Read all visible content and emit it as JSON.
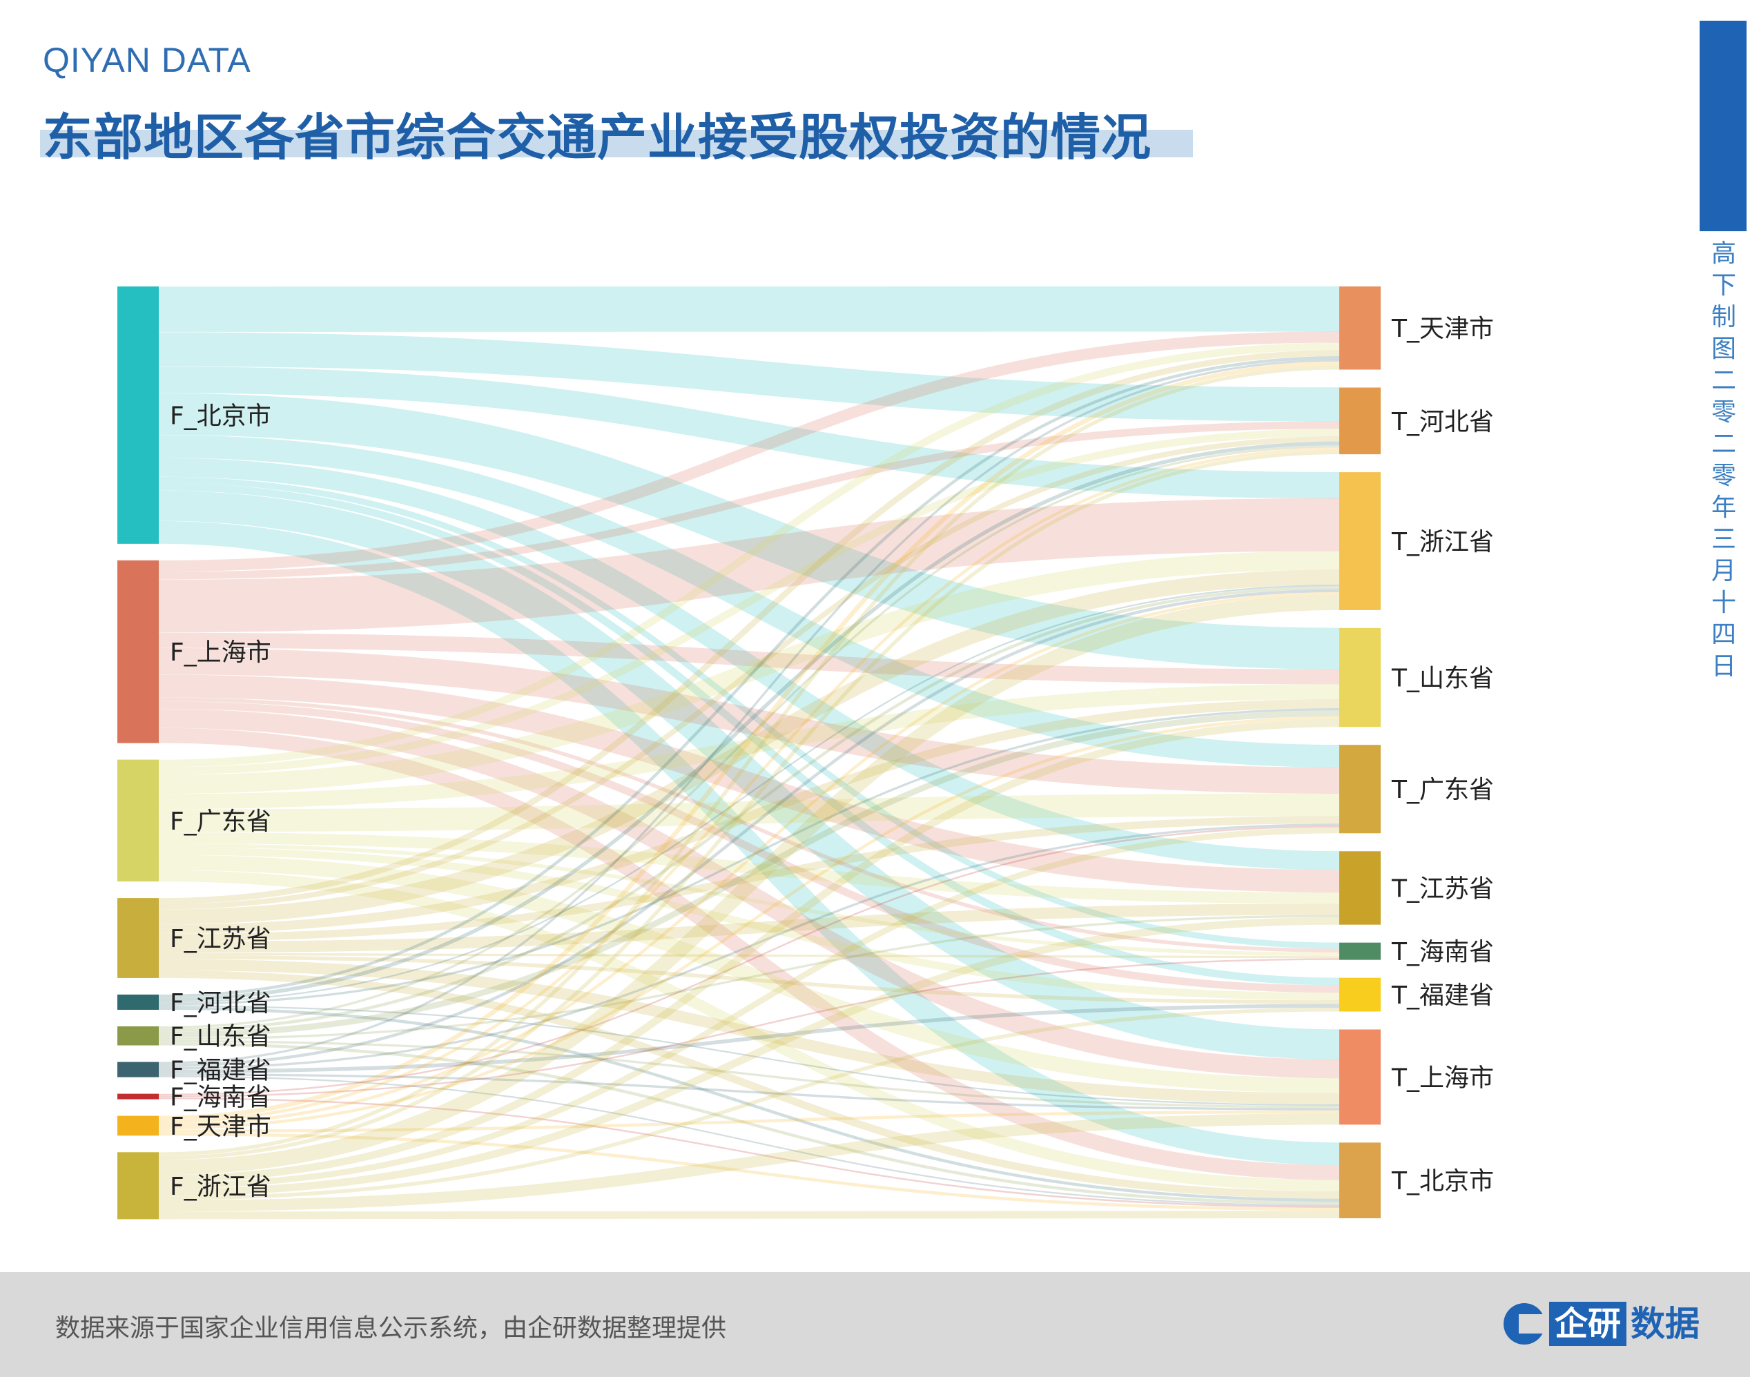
{
  "header": {
    "brand": "QIYAN DATA",
    "title": "东部地区各省市综合交通产业接受股权投资的情况"
  },
  "side": {
    "text": "高下制图 二零二零年三月十四日"
  },
  "footer": {
    "source": "数据来源于国家企业信用信息公示系统，由企研数据整理提供",
    "logo_box": "企研",
    "logo_text": "数据"
  },
  "colors": {
    "F_北京市": "#26bfc1",
    "F_上海市": "#d9745a",
    "F_广东省": "#d6d464",
    "F_江苏省": "#c8ae3d",
    "F_河北省": "#2f6b6e",
    "F_山东省": "#8a9a48",
    "F_福建省": "#3c6470",
    "F_海南省": "#c42d2d",
    "F_天津市": "#f4b31c",
    "F_浙江省": "#c8b43a",
    "T_天津市": "#e8905e",
    "T_河北省": "#e29a4a",
    "T_浙江省": "#f5c14f",
    "T_山东省": "#ead65c",
    "T_广东省": "#d2a83f",
    "T_江苏省": "#c9a22a",
    "T_海南省": "#4f8c64",
    "T_福建省": "#f8cd1e",
    "T_上海市": "#ef8c64",
    "T_北京市": "#dca24c"
  },
  "chart_data": {
    "type": "sankey",
    "title": "东部地区各省市综合交通产业接受股权投资的情况",
    "sources": [
      "F_北京市",
      "F_上海市",
      "F_广东省",
      "F_江苏省",
      "F_河北省",
      "F_山东省",
      "F_福建省",
      "F_海南省",
      "F_天津市",
      "F_浙江省"
    ],
    "targets": [
      "T_天津市",
      "T_河北省",
      "T_浙江省",
      "T_山东省",
      "T_广东省",
      "T_江苏省",
      "T_海南省",
      "T_福建省",
      "T_上海市",
      "T_北京市"
    ],
    "links": [
      {
        "source": "F_北京市",
        "target": "T_天津市",
        "value": 60
      },
      {
        "source": "F_北京市",
        "target": "T_河北省",
        "value": 45
      },
      {
        "source": "F_北京市",
        "target": "T_浙江省",
        "value": 35
      },
      {
        "source": "F_北京市",
        "target": "T_山东省",
        "value": 55
      },
      {
        "source": "F_北京市",
        "target": "T_广东省",
        "value": 30
      },
      {
        "source": "F_北京市",
        "target": "T_江苏省",
        "value": 25
      },
      {
        "source": "F_北京市",
        "target": "T_海南省",
        "value": 8
      },
      {
        "source": "F_北京市",
        "target": "T_福建省",
        "value": 10
      },
      {
        "source": "F_北京市",
        "target": "T_上海市",
        "value": 40
      },
      {
        "source": "F_北京市",
        "target": "T_北京市",
        "value": 30
      },
      {
        "source": "F_上海市",
        "target": "T_天津市",
        "value": 15
      },
      {
        "source": "F_上海市",
        "target": "T_河北省",
        "value": 10
      },
      {
        "source": "F_上海市",
        "target": "T_浙江省",
        "value": 70
      },
      {
        "source": "F_上海市",
        "target": "T_山东省",
        "value": 20
      },
      {
        "source": "F_上海市",
        "target": "T_广东省",
        "value": 35
      },
      {
        "source": "F_上海市",
        "target": "T_江苏省",
        "value": 30
      },
      {
        "source": "F_上海市",
        "target": "T_海南省",
        "value": 5
      },
      {
        "source": "F_上海市",
        "target": "T_福建省",
        "value": 10
      },
      {
        "source": "F_上海市",
        "target": "T_上海市",
        "value": 25
      },
      {
        "source": "F_上海市",
        "target": "T_北京市",
        "value": 20
      },
      {
        "source": "F_广东省",
        "target": "T_天津市",
        "value": 10
      },
      {
        "source": "F_广东省",
        "target": "T_河北省",
        "value": 10
      },
      {
        "source": "F_广东省",
        "target": "T_浙江省",
        "value": 25
      },
      {
        "source": "F_广东省",
        "target": "T_山东省",
        "value": 20
      },
      {
        "source": "F_广东省",
        "target": "T_广东省",
        "value": 30
      },
      {
        "source": "F_广东省",
        "target": "T_江苏省",
        "value": 15
      },
      {
        "source": "F_广东省",
        "target": "T_海南省",
        "value": 5
      },
      {
        "source": "F_广东省",
        "target": "T_福建省",
        "value": 10
      },
      {
        "source": "F_广东省",
        "target": "T_上海市",
        "value": 20
      },
      {
        "source": "F_广东省",
        "target": "T_北京市",
        "value": 15
      },
      {
        "source": "F_江苏省",
        "target": "T_天津市",
        "value": 8
      },
      {
        "source": "F_江苏省",
        "target": "T_河北省",
        "value": 7
      },
      {
        "source": "F_江苏省",
        "target": "T_浙江省",
        "value": 20
      },
      {
        "source": "F_江苏省",
        "target": "T_山东省",
        "value": 12
      },
      {
        "source": "F_江苏省",
        "target": "T_广东省",
        "value": 10
      },
      {
        "source": "F_江苏省",
        "target": "T_江苏省",
        "value": 15
      },
      {
        "source": "F_江苏省",
        "target": "T_海南省",
        "value": 3
      },
      {
        "source": "F_江苏省",
        "target": "T_福建省",
        "value": 5
      },
      {
        "source": "F_江苏省",
        "target": "T_上海市",
        "value": 15
      },
      {
        "source": "F_江苏省",
        "target": "T_北京市",
        "value": 10
      },
      {
        "source": "F_河北省",
        "target": "T_天津市",
        "value": 4
      },
      {
        "source": "F_河北省",
        "target": "T_河北省",
        "value": 5
      },
      {
        "source": "F_河北省",
        "target": "T_浙江省",
        "value": 2
      },
      {
        "source": "F_河北省",
        "target": "T_山东省",
        "value": 3
      },
      {
        "source": "F_河北省",
        "target": "T_上海市",
        "value": 2
      },
      {
        "source": "F_河北省",
        "target": "T_北京市",
        "value": 4
      },
      {
        "source": "F_山东省",
        "target": "T_河北省",
        "value": 3
      },
      {
        "source": "F_山东省",
        "target": "T_浙江省",
        "value": 4
      },
      {
        "source": "F_山东省",
        "target": "T_山东省",
        "value": 8
      },
      {
        "source": "F_山东省",
        "target": "T_江苏省",
        "value": 3
      },
      {
        "source": "F_山东省",
        "target": "T_上海市",
        "value": 3
      },
      {
        "source": "F_山东省",
        "target": "T_北京市",
        "value": 4
      },
      {
        "source": "F_福建省",
        "target": "T_天津市",
        "value": 3
      },
      {
        "source": "F_福建省",
        "target": "T_浙江省",
        "value": 4
      },
      {
        "source": "F_福建省",
        "target": "T_广东省",
        "value": 3
      },
      {
        "source": "F_福建省",
        "target": "T_福建省",
        "value": 5
      },
      {
        "source": "F_福建省",
        "target": "T_上海市",
        "value": 3
      },
      {
        "source": "F_福建省",
        "target": "T_北京市",
        "value": 2
      },
      {
        "source": "F_海南省",
        "target": "T_广东省",
        "value": 2
      },
      {
        "source": "F_海南省",
        "target": "T_海南省",
        "value": 2
      },
      {
        "source": "F_海南省",
        "target": "T_北京市",
        "value": 2
      },
      {
        "source": "F_天津市",
        "target": "T_天津市",
        "value": 6
      },
      {
        "source": "F_天津市",
        "target": "T_河北省",
        "value": 4
      },
      {
        "source": "F_天津市",
        "target": "T_浙江省",
        "value": 4
      },
      {
        "source": "F_天津市",
        "target": "T_山东省",
        "value": 4
      },
      {
        "source": "F_天津市",
        "target": "T_上海市",
        "value": 4
      },
      {
        "source": "F_天津市",
        "target": "T_北京市",
        "value": 4
      },
      {
        "source": "F_浙江省",
        "target": "T_天津市",
        "value": 5
      },
      {
        "source": "F_浙江省",
        "target": "T_河北省",
        "value": 5
      },
      {
        "source": "F_浙江省",
        "target": "T_浙江省",
        "value": 20
      },
      {
        "source": "F_浙江省",
        "target": "T_山东省",
        "value": 10
      },
      {
        "source": "F_浙江省",
        "target": "T_广东省",
        "value": 8
      },
      {
        "source": "F_浙江省",
        "target": "T_江苏省",
        "value": 10
      },
      {
        "source": "F_浙江省",
        "target": "T_福建省",
        "value": 5
      },
      {
        "source": "F_浙江省",
        "target": "T_上海市",
        "value": 15
      },
      {
        "source": "F_浙江省",
        "target": "T_北京市",
        "value": 10
      }
    ]
  }
}
